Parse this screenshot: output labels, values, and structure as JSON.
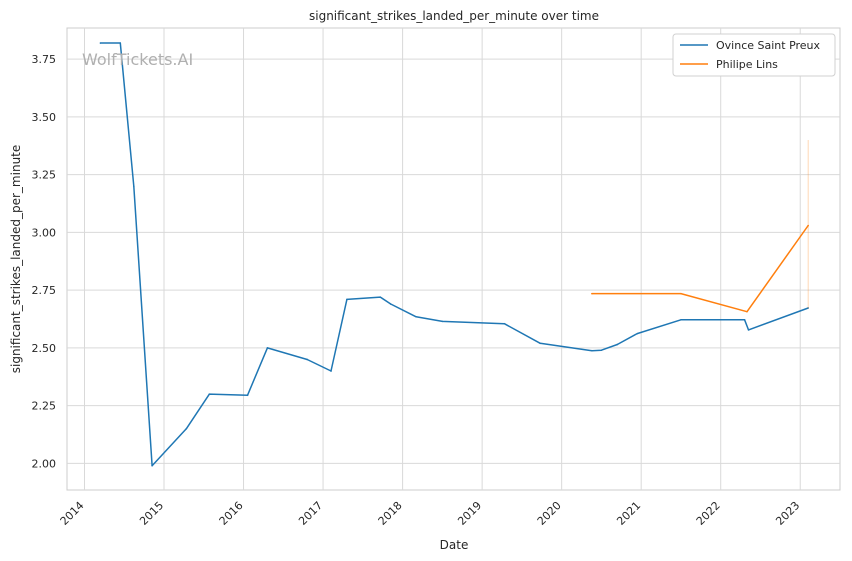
{
  "chart_data": {
    "type": "line",
    "title": "significant_strikes_landed_per_minute over time",
    "xlabel": "Date",
    "ylabel": "significant_strikes_landed_per_minute",
    "watermark": "WolfTickets.AI",
    "xlim": [
      2013.78,
      2023.5
    ],
    "ylim": [
      1.885,
      3.885
    ],
    "x_ticks": [
      2014,
      2015,
      2016,
      2017,
      2018,
      2019,
      2020,
      2021,
      2022,
      2023
    ],
    "x_tick_labels": [
      "2014",
      "2015",
      "2016",
      "2017",
      "2018",
      "2019",
      "2020",
      "2021",
      "2022",
      "2023"
    ],
    "y_ticks": [
      2.0,
      2.25,
      2.5,
      2.75,
      3.0,
      3.25,
      3.5,
      3.75
    ],
    "y_tick_labels": [
      "2.00",
      "2.25",
      "2.50",
      "2.75",
      "3.00",
      "3.25",
      "3.50",
      "3.75"
    ],
    "grid": true,
    "legend_position": "top-right",
    "series": [
      {
        "name": "Ovince Saint Preux",
        "color": "#1f77b4",
        "points": [
          [
            2014.2,
            3.82
          ],
          [
            2014.45,
            3.82
          ],
          [
            2014.62,
            3.2
          ],
          [
            2014.85,
            1.99
          ],
          [
            2015.28,
            2.15
          ],
          [
            2015.57,
            2.3
          ],
          [
            2016.05,
            2.295
          ],
          [
            2016.3,
            2.5
          ],
          [
            2016.8,
            2.45
          ],
          [
            2017.1,
            2.4
          ],
          [
            2017.3,
            2.71
          ],
          [
            2017.72,
            2.72
          ],
          [
            2017.85,
            2.69
          ],
          [
            2018.17,
            2.635
          ],
          [
            2018.5,
            2.615
          ],
          [
            2019.28,
            2.605
          ],
          [
            2019.73,
            2.52
          ],
          [
            2020.38,
            2.488
          ],
          [
            2020.5,
            2.49
          ],
          [
            2020.7,
            2.515
          ],
          [
            2020.95,
            2.562
          ],
          [
            2021.5,
            2.622
          ],
          [
            2022.3,
            2.622
          ],
          [
            2022.35,
            2.578
          ],
          [
            2023.1,
            2.673
          ]
        ]
      },
      {
        "name": "Philipe Lins",
        "color": "#ff7f0e",
        "points": [
          [
            2020.38,
            2.735
          ],
          [
            2021.5,
            2.735
          ],
          [
            2022.33,
            2.657
          ],
          [
            2023.1,
            3.03
          ]
        ],
        "error_bar": {
          "x": 2023.1,
          "low": 2.67,
          "high": 3.4
        }
      }
    ]
  }
}
